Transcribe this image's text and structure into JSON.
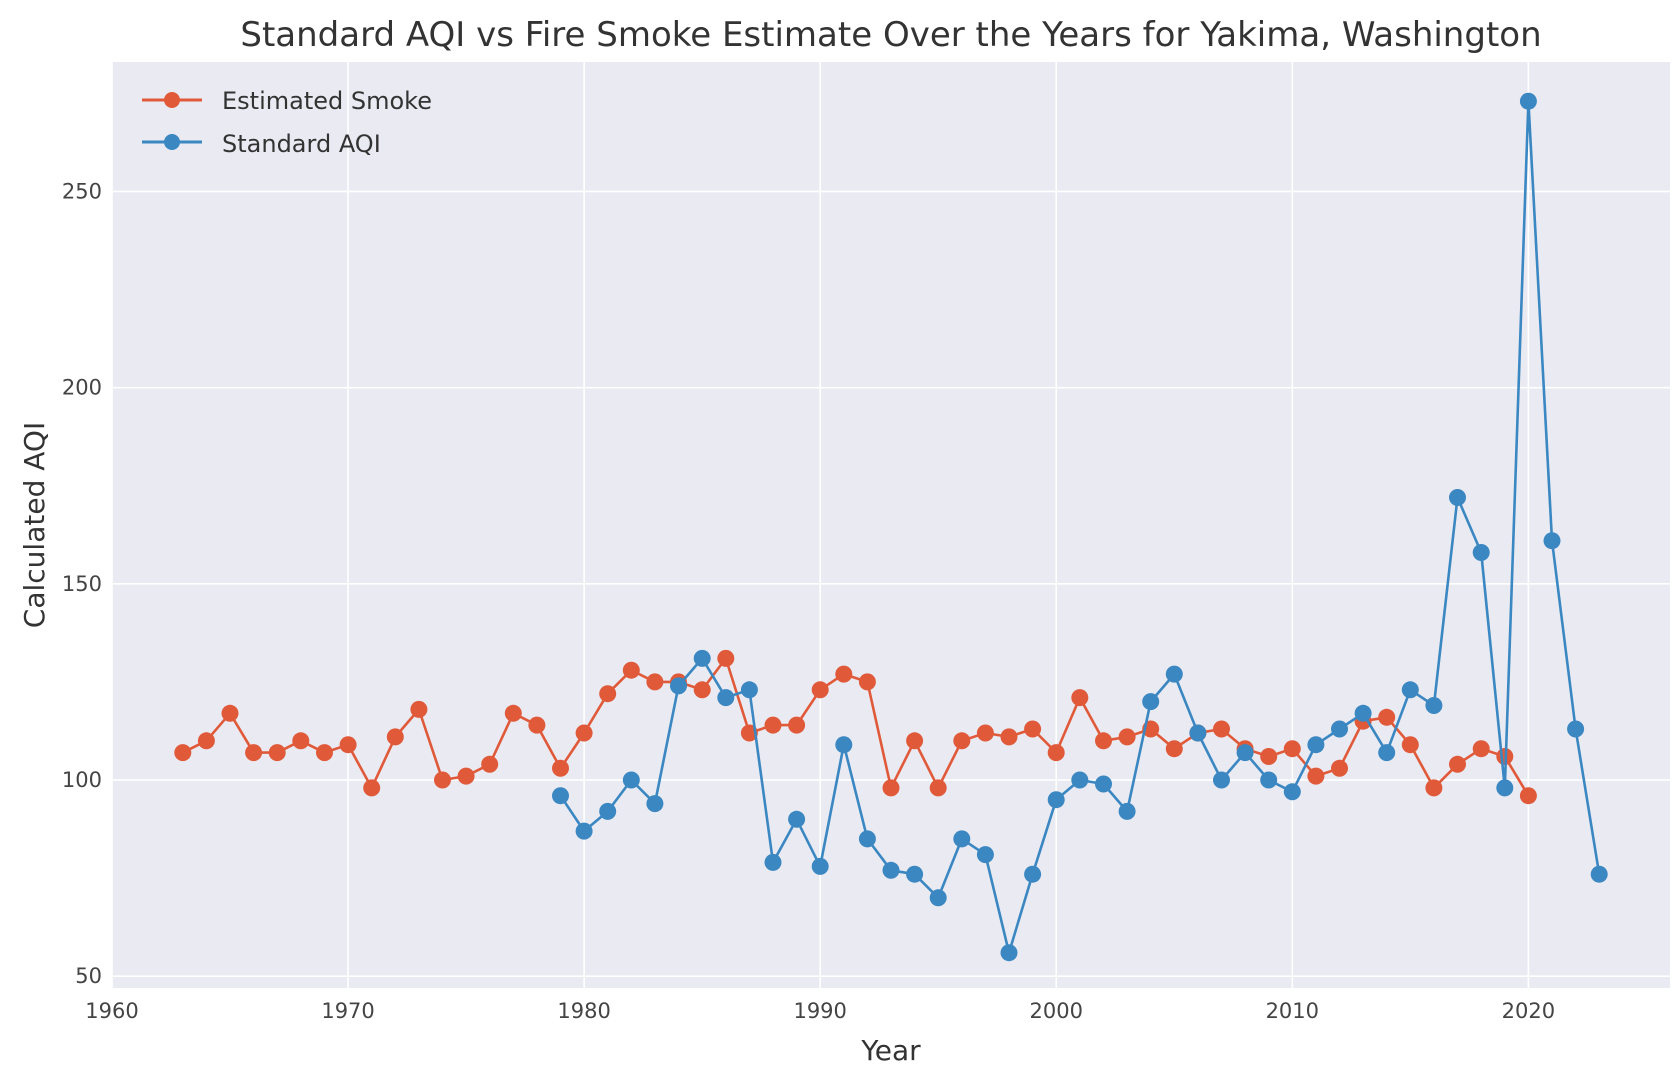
{
  "chart_data": {
    "type": "line",
    "title": "Standard AQI vs Fire Smoke Estimate Over the Years for Yakima, Washington",
    "xlabel": "Year",
    "ylabel": "Calculated AQI",
    "xlim": [
      1960,
      2026
    ],
    "ylim": [
      47,
      283
    ],
    "x_ticks": [
      1960,
      1970,
      1980,
      1990,
      2000,
      2010,
      2020
    ],
    "y_ticks": [
      50,
      100,
      150,
      200,
      250
    ],
    "grid": true,
    "legend_position": "upper-left",
    "background": "#eaeaf2",
    "series": [
      {
        "name": "Estimated Smoke",
        "color": "#e05a3a",
        "x": [
          1963,
          1964,
          1965,
          1966,
          1967,
          1968,
          1969,
          1970,
          1971,
          1972,
          1973,
          1974,
          1975,
          1976,
          1977,
          1978,
          1979,
          1980,
          1981,
          1982,
          1983,
          1984,
          1985,
          1986,
          1987,
          1988,
          1989,
          1990,
          1991,
          1992,
          1993,
          1994,
          1995,
          1996,
          1997,
          1998,
          1999,
          2000,
          2001,
          2002,
          2003,
          2004,
          2005,
          2006,
          2007,
          2008,
          2009,
          2010,
          2011,
          2012,
          2013,
          2014,
          2015,
          2016,
          2017,
          2018,
          2019,
          2020
        ],
        "values": [
          107,
          110,
          117,
          107,
          107,
          110,
          107,
          109,
          98,
          111,
          118,
          100,
          101,
          104,
          117,
          114,
          103,
          112,
          122,
          128,
          125,
          125,
          123,
          131,
          112,
          114,
          114,
          123,
          127,
          125,
          98,
          110,
          98,
          110,
          112,
          111,
          113,
          107,
          121,
          110,
          111,
          113,
          108,
          112,
          113,
          108,
          106,
          108,
          101,
          103,
          115,
          116,
          109,
          98,
          104,
          108,
          106,
          96
        ],
        "marker": "circle"
      },
      {
        "name": "Standard AQI",
        "color": "#3a87c2",
        "x": [
          1979,
          1980,
          1981,
          1982,
          1983,
          1984,
          1985,
          1986,
          1987,
          1988,
          1989,
          1990,
          1991,
          1992,
          1993,
          1994,
          1995,
          1996,
          1997,
          1998,
          1999,
          2000,
          2001,
          2002,
          2003,
          2004,
          2005,
          2006,
          2007,
          2008,
          2009,
          2010,
          2011,
          2012,
          2013,
          2014,
          2015,
          2016,
          2017,
          2018,
          2019,
          2020,
          2021,
          2022,
          2023
        ],
        "values": [
          96,
          87,
          92,
          100,
          94,
          124,
          131,
          121,
          123,
          79,
          90,
          78,
          109,
          85,
          77,
          76,
          70,
          85,
          81,
          56,
          76,
          95,
          100,
          99,
          92,
          120,
          127,
          112,
          100,
          107,
          100,
          97,
          109,
          113,
          117,
          107,
          123,
          119,
          172,
          158,
          98,
          273,
          161,
          113,
          76
        ],
        "marker": "circle"
      }
    ]
  }
}
